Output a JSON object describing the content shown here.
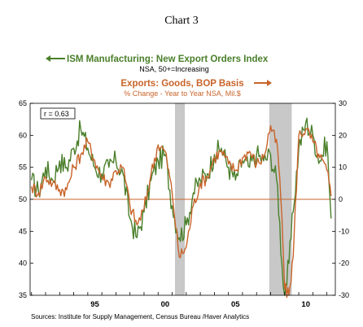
{
  "chart_data": {
    "type": "line",
    "title": "Chart 3",
    "series": [
      {
        "name": "ISM Manufacturing: New Export Orders Index",
        "subtitle": "NSA, 50+=Increasing",
        "axis": "left",
        "color": "#4a7f2a",
        "x": [
          1991.0,
          1991.5,
          1992.0,
          1992.5,
          1993.0,
          1993.5,
          1994.0,
          1994.5,
          1995.0,
          1995.5,
          1996.0,
          1996.5,
          1997.0,
          1997.5,
          1998.0,
          1998.5,
          1999.0,
          1999.5,
          2000.0,
          2000.5,
          2001.0,
          2001.5,
          2002.0,
          2002.5,
          2003.0,
          2003.5,
          2004.0,
          2004.5,
          2005.0,
          2005.5,
          2006.0,
          2006.5,
          2007.0,
          2007.5,
          2008.0,
          2008.5,
          2008.8,
          2009.0,
          2009.3,
          2009.6,
          2010.0,
          2010.5,
          2011.0,
          2011.5,
          2012.0,
          2012.3
        ],
        "values": [
          53,
          51,
          55,
          53,
          56,
          55,
          58,
          61,
          58,
          55,
          54,
          55,
          56,
          54,
          47,
          44,
          48,
          53,
          56,
          57,
          49,
          44,
          46,
          51,
          53,
          54,
          57,
          58,
          55,
          53,
          56,
          55,
          57,
          56,
          57,
          52,
          40,
          35,
          40,
          48,
          58,
          62,
          60,
          56,
          59,
          47
        ]
      },
      {
        "name": "Exports: Goods, BOP Basis",
        "subtitle": "% Change - Year to Year   NSA, Mil.$",
        "axis": "right",
        "color": "#c8642a",
        "x": [
          1991.0,
          1991.5,
          1992.0,
          1992.5,
          1993.0,
          1993.5,
          1994.0,
          1994.5,
          1995.0,
          1995.5,
          1996.0,
          1996.5,
          1997.0,
          1997.5,
          1998.0,
          1998.5,
          1999.0,
          1999.5,
          2000.0,
          2000.5,
          2001.0,
          2001.5,
          2002.0,
          2002.5,
          2003.0,
          2003.5,
          2004.0,
          2004.5,
          2005.0,
          2005.5,
          2006.0,
          2006.5,
          2007.0,
          2007.5,
          2008.0,
          2008.5,
          2008.8,
          2009.0,
          2009.3,
          2009.6,
          2010.0,
          2010.5,
          2011.0,
          2011.5,
          2012.0,
          2012.3
        ],
        "values": [
          4,
          2,
          7,
          5,
          3,
          3,
          10,
          14,
          18,
          12,
          7,
          5,
          9,
          10,
          -2,
          -8,
          -3,
          8,
          17,
          15,
          2,
          -18,
          -15,
          -2,
          5,
          7,
          13,
          15,
          11,
          9,
          13,
          15,
          11,
          13,
          23,
          16,
          -5,
          -28,
          -30,
          -18,
          20,
          22,
          18,
          13,
          9,
          1
        ]
      }
    ],
    "x_ticks": [
      {
        "value": 1995,
        "label": "95"
      },
      {
        "value": 2000,
        "label": "00"
      },
      {
        "value": 2005,
        "label": "05"
      },
      {
        "value": 2010,
        "label": "10"
      }
    ],
    "xlim": [
      1990.9,
      2012.6
    ],
    "ylim_left": [
      35,
      65
    ],
    "yticks_left": [
      35,
      40,
      45,
      50,
      55,
      60,
      65
    ],
    "ylim_right": [
      -30,
      30
    ],
    "yticks_right": [
      -30,
      -20,
      -10,
      0,
      10,
      20,
      30
    ],
    "recessions": [
      [
        2001.2,
        2001.9
      ],
      [
        2007.9,
        2009.5
      ]
    ],
    "reference_line_left": 50,
    "annotation": "r = 0.63",
    "arrow_left_label": "ISM Manufacturing: New Export Orders Index",
    "arrow_right_label": "Exports: Goods, BOP Basis",
    "source": "Sources:  Institute for Supply Management, Census Bureau /Haver Analytics",
    "grid": false,
    "legend": "top-center"
  }
}
